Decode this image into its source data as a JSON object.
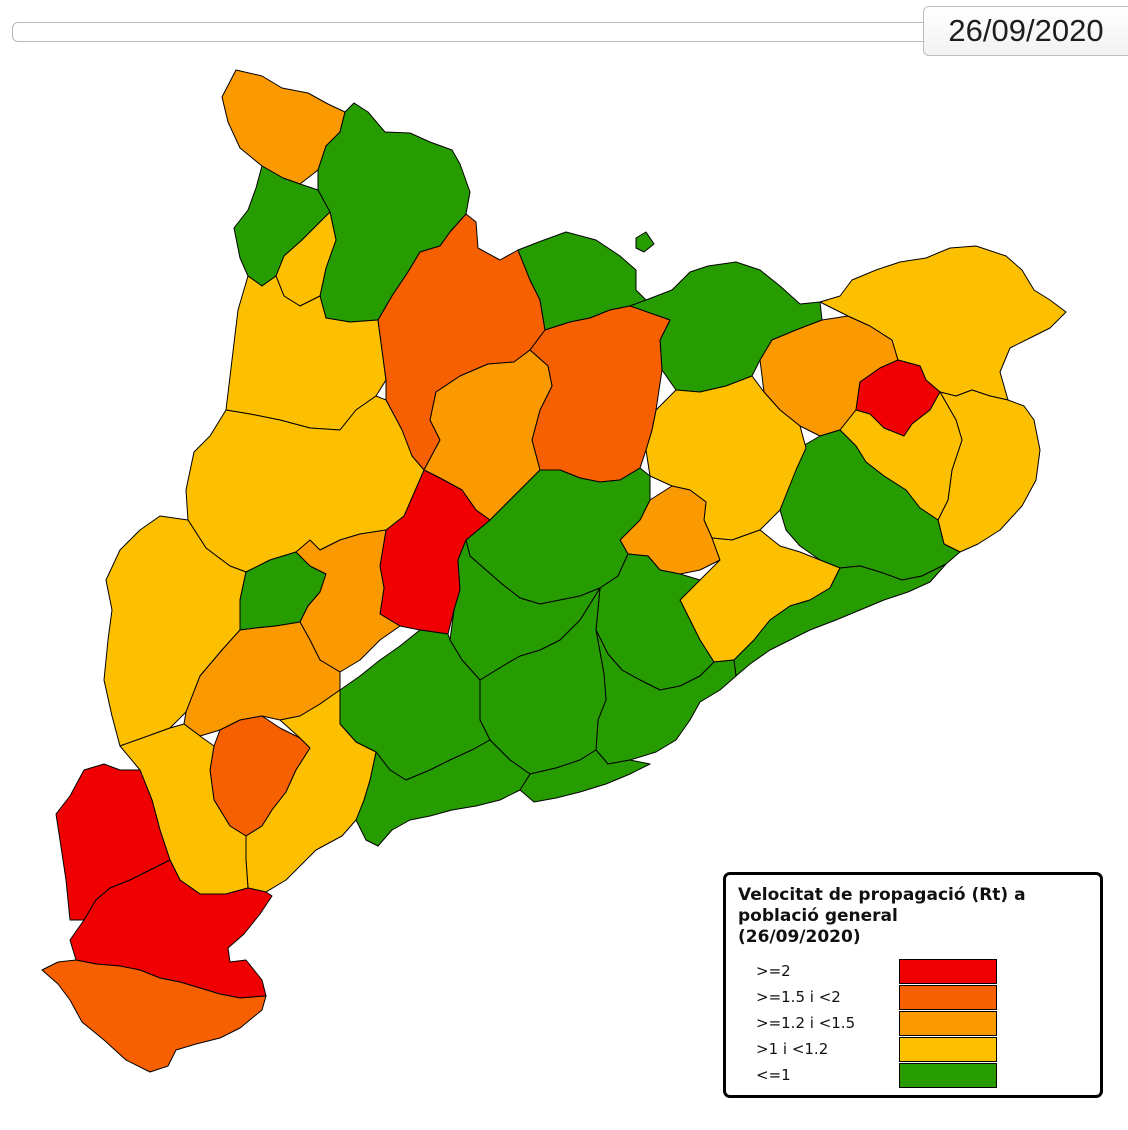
{
  "date_display": "26/09/2020",
  "colors": {
    "ge2": "#f00000",
    "ge15_lt2": "#f76000",
    "ge12_lt15": "#fa9900",
    "gt1_lt12": "#fdc000",
    "le1": "#269c00"
  },
  "legend": {
    "title_line1": "Velocitat de propagació (Rt) a",
    "title_line2": "població general",
    "title_line3": "(26/09/2020)",
    "items": [
      {
        "label": ">=2",
        "color_key": "ge2"
      },
      {
        "label": ">=1.5 i <2",
        "color_key": "ge15_lt2"
      },
      {
        "label": ">=1.2 i <1.5",
        "color_key": "ge12_lt15"
      },
      {
        "label": ">1 i <1.2",
        "color_key": "gt1_lt12"
      },
      {
        "label": "<=1",
        "color_key": "le1"
      }
    ]
  }
}
